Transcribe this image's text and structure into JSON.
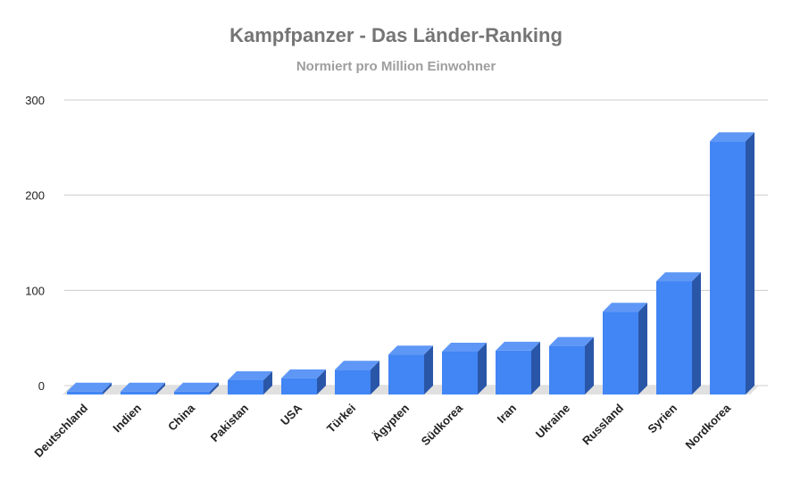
{
  "chart_data": {
    "type": "bar",
    "title": "Kampfpanzer - Das Länder-Ranking",
    "subtitle": "Normiert pro Million Einwohner",
    "categories": [
      "Deutschland",
      "Indien",
      "China",
      "Pakistan",
      "USA",
      "Türkei",
      "Ägypten",
      "Südkorea",
      "Iran",
      "Ukraine",
      "Russland",
      "Syrien",
      "Nordkorea"
    ],
    "values": [
      3,
      3,
      3,
      15,
      17,
      26,
      42,
      45,
      46,
      51,
      87,
      119,
      266
    ],
    "ylim": [
      0,
      300
    ],
    "yticks": [
      0,
      100,
      200,
      300
    ],
    "grid": true,
    "legend": "none",
    "colors": {
      "front": "#4285f4",
      "top": "#5e97f6",
      "side": "#2a56a8",
      "floor": "#e0e0e0",
      "grid": "#cccccc"
    }
  }
}
